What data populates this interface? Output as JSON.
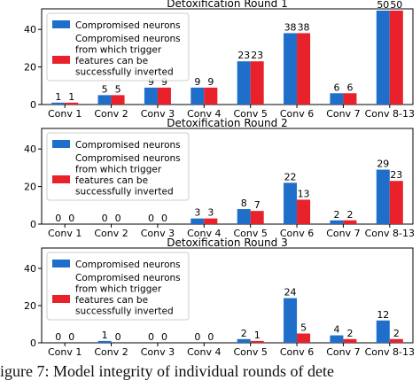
{
  "legend": {
    "blue_label": "Compromised neurons",
    "red_label_lines": [
      "Compromised neurons",
      "from which trigger",
      "features can be",
      "successfully inverted"
    ]
  },
  "colors": {
    "blue": "#1f6ec9",
    "red": "#e8212b"
  },
  "caption": "igure 7: Model integrity of individual rounds of dete",
  "chart_data": [
    {
      "type": "bar",
      "title": "Detoxification Round 1",
      "categories": [
        "Conv 1",
        "Conv 2",
        "Conv 3",
        "Conv 4",
        "Conv 5",
        "Conv 6",
        "Conv 7",
        "Conv 8-13"
      ],
      "series": [
        {
          "name": "Compromised neurons",
          "values": [
            1,
            5,
            9,
            9,
            23,
            38,
            6,
            50
          ]
        },
        {
          "name": "Compromised neurons from which trigger features can be successfully inverted",
          "values": [
            1,
            5,
            9,
            9,
            23,
            38,
            6,
            50
          ]
        }
      ],
      "ylim": [
        0,
        50
      ],
      "yticks": [
        0,
        20,
        40
      ],
      "legend": "top-left",
      "grid": false
    },
    {
      "type": "bar",
      "title": "Detoxification Round 2",
      "categories": [
        "Conv 1",
        "Conv 2",
        "Conv 3",
        "Conv 4",
        "Conv 5",
        "Conv 6",
        "Conv 7",
        "Conv 8-13"
      ],
      "series": [
        {
          "name": "Compromised neurons",
          "values": [
            0,
            0,
            0,
            3,
            8,
            22,
            2,
            29
          ]
        },
        {
          "name": "Compromised neurons from which trigger features can be successfully inverted",
          "values": [
            0,
            0,
            0,
            3,
            7,
            13,
            2,
            23
          ]
        }
      ],
      "ylim": [
        0,
        50
      ],
      "yticks": [
        0,
        20,
        40
      ],
      "legend": "top-left",
      "grid": false
    },
    {
      "type": "bar",
      "title": "Detoxification Round 3",
      "categories": [
        "Conv 1",
        "Conv 2",
        "Conv 3",
        "Conv 4",
        "Conv 5",
        "Conv 6",
        "Conv 7",
        "Conv 8-13"
      ],
      "series": [
        {
          "name": "Compromised neurons",
          "values": [
            0,
            1,
            0,
            0,
            2,
            24,
            4,
            12
          ]
        },
        {
          "name": "Compromised neurons from which trigger features can be successfully inverted",
          "values": [
            0,
            0,
            0,
            0,
            1,
            5,
            2,
            2
          ]
        }
      ],
      "ylim": [
        0,
        50
      ],
      "yticks": [
        0,
        20,
        40
      ],
      "legend": "top-left",
      "grid": false
    }
  ]
}
